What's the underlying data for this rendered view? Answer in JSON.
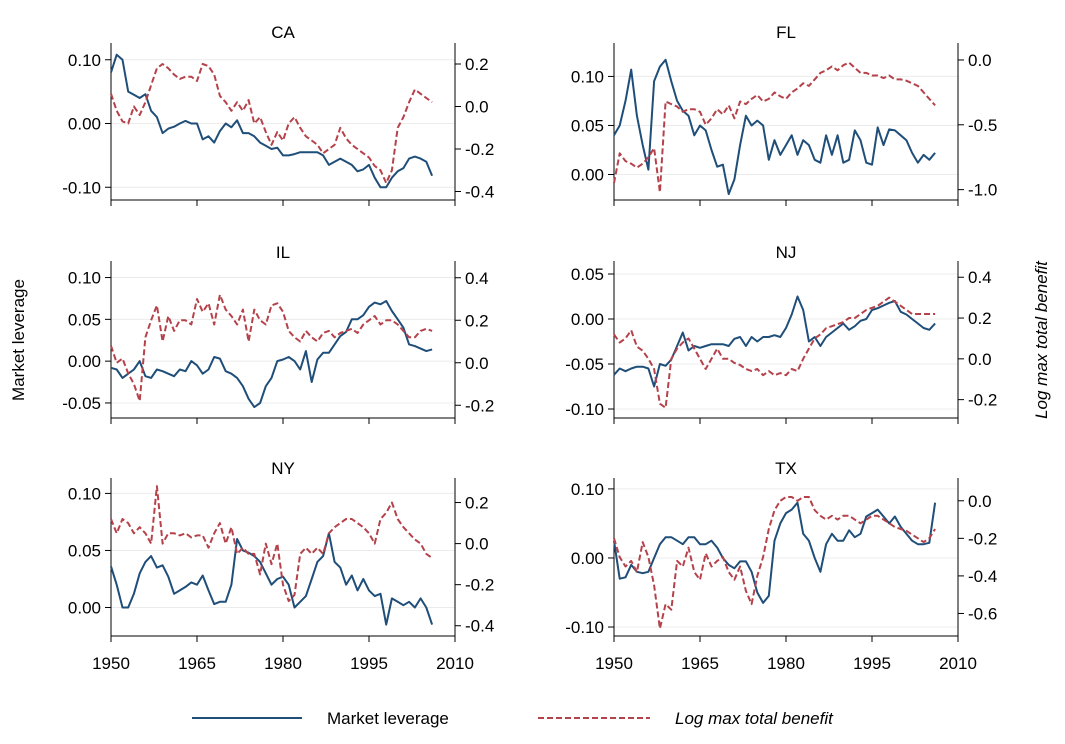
{
  "y_axis_left_label": "Market leverage",
  "y_axis_right_label": "Log max total benefit",
  "legend": [
    {
      "label": "Market leverage",
      "color": "#1f4e79",
      "style": "solid"
    },
    {
      "label": "Log max total benefit",
      "color": "#b5424a",
      "style": "dashed"
    }
  ],
  "x_ticks": [
    "1950",
    "1965",
    "1980",
    "1995",
    "2010"
  ],
  "chart_data": [
    {
      "type": "line",
      "title": "CA",
      "x_start": 1950,
      "x_step": 1,
      "xlim": [
        1950,
        2010
      ],
      "left_axis": {
        "ylim": [
          -0.12,
          0.12
        ],
        "ticks": [
          -0.1,
          0.0,
          0.1
        ],
        "tick_labels": [
          "-0.10",
          "0.00",
          "0.10"
        ]
      },
      "right_axis": {
        "ylim": [
          -0.44,
          0.28
        ],
        "ticks": [
          -0.4,
          -0.2,
          0.0,
          0.2
        ],
        "tick_labels": [
          "-0.4",
          "-0.2",
          "0.0",
          "0.2"
        ]
      },
      "series": [
        {
          "name": "Market leverage",
          "axis": "left",
          "values": [
            0.08,
            0.108,
            0.1,
            0.05,
            0.045,
            0.04,
            0.046,
            0.02,
            0.01,
            -0.015,
            -0.008,
            -0.005,
            0.0,
            0.004,
            0.0,
            0.0,
            -0.025,
            -0.02,
            -0.03,
            -0.012,
            0.0,
            -0.006,
            0.005,
            -0.015,
            -0.015,
            -0.02,
            -0.03,
            -0.035,
            -0.04,
            -0.038,
            -0.05,
            -0.05,
            -0.048,
            -0.045,
            -0.045,
            -0.045,
            -0.045,
            -0.05,
            -0.065,
            -0.06,
            -0.055,
            -0.06,
            -0.065,
            -0.075,
            -0.072,
            -0.065,
            -0.085,
            -0.1,
            -0.1,
            -0.085,
            -0.075,
            -0.07,
            -0.055,
            -0.052,
            -0.055,
            -0.06,
            -0.082
          ]
        },
        {
          "name": "Log max total benefit",
          "axis": "right",
          "values": [
            0.06,
            -0.02,
            -0.07,
            -0.08,
            0.0,
            -0.04,
            0.02,
            0.1,
            0.18,
            0.2,
            0.18,
            0.15,
            0.13,
            0.14,
            0.14,
            0.12,
            0.2,
            0.19,
            0.15,
            0.05,
            0.02,
            -0.02,
            0.02,
            -0.02,
            0.03,
            -0.08,
            -0.05,
            -0.12,
            -0.18,
            -0.12,
            -0.16,
            -0.08,
            -0.05,
            -0.1,
            -0.14,
            -0.16,
            -0.18,
            -0.22,
            -0.2,
            -0.18,
            -0.1,
            -0.15,
            -0.18,
            -0.2,
            -0.22,
            -0.24,
            -0.28,
            -0.3,
            -0.36,
            -0.3,
            -0.1,
            -0.05,
            0.02,
            0.08,
            0.06,
            0.04,
            0.02
          ]
        }
      ]
    },
    {
      "type": "line",
      "title": "FL",
      "x_start": 1950,
      "x_step": 1,
      "xlim": [
        1950,
        2010
      ],
      "left_axis": {
        "ylim": [
          -0.026,
          0.13
        ],
        "ticks": [
          0.0,
          0.05,
          0.1
        ],
        "tick_labels": [
          "0.00",
          "0.05",
          "0.10"
        ]
      },
      "right_axis": {
        "ylim": [
          -1.08,
          0.1
        ],
        "ticks": [
          -1.0,
          -0.5,
          0.0
        ],
        "tick_labels": [
          "-1.0",
          "-0.5",
          "0.0"
        ]
      },
      "series": [
        {
          "name": "Market leverage",
          "axis": "left",
          "values": [
            0.04,
            0.05,
            0.075,
            0.107,
            0.06,
            0.03,
            0.005,
            0.095,
            0.11,
            0.117,
            0.095,
            0.075,
            0.065,
            0.06,
            0.04,
            0.05,
            0.045,
            0.025,
            0.008,
            0.01,
            -0.02,
            -0.005,
            0.03,
            0.06,
            0.05,
            0.055,
            0.05,
            0.015,
            0.035,
            0.02,
            0.03,
            0.04,
            0.02,
            0.035,
            0.03,
            0.015,
            0.012,
            0.04,
            0.02,
            0.04,
            0.012,
            0.015,
            0.045,
            0.035,
            0.012,
            0.01,
            0.048,
            0.03,
            0.046,
            0.045,
            0.04,
            0.035,
            0.022,
            0.012,
            0.02,
            0.015,
            0.022
          ]
        },
        {
          "name": "Log max total benefit",
          "axis": "right",
          "values": [
            -0.95,
            -0.72,
            -0.78,
            -0.8,
            -0.83,
            -0.8,
            -0.75,
            -0.68,
            -1.02,
            -0.32,
            -0.34,
            -0.36,
            -0.4,
            -0.38,
            -0.38,
            -0.4,
            -0.5,
            -0.45,
            -0.38,
            -0.42,
            -0.35,
            -0.45,
            -0.32,
            -0.34,
            -0.3,
            -0.27,
            -0.32,
            -0.3,
            -0.25,
            -0.28,
            -0.3,
            -0.25,
            -0.22,
            -0.18,
            -0.2,
            -0.15,
            -0.1,
            -0.08,
            -0.05,
            -0.08,
            -0.04,
            -0.02,
            -0.06,
            -0.1,
            -0.1,
            -0.12,
            -0.12,
            -0.14,
            -0.12,
            -0.15,
            -0.15,
            -0.16,
            -0.18,
            -0.2,
            -0.25,
            -0.3,
            -0.35
          ]
        }
      ]
    },
    {
      "type": "line",
      "title": "IL",
      "x_start": 1950,
      "x_step": 1,
      "xlim": [
        1950,
        2010
      ],
      "left_axis": {
        "ylim": [
          -0.068,
          0.115
        ],
        "ticks": [
          -0.05,
          0.0,
          0.05,
          0.1
        ],
        "tick_labels": [
          "-0.05",
          "0.00",
          "0.05",
          "0.10"
        ]
      },
      "right_axis": {
        "ylim": [
          -0.26,
          0.46
        ],
        "ticks": [
          -0.2,
          0.0,
          0.2,
          0.4
        ],
        "tick_labels": [
          "-0.2",
          "0.0",
          "0.2",
          "0.4"
        ]
      },
      "series": [
        {
          "name": "Market leverage",
          "axis": "left",
          "values": [
            -0.008,
            -0.01,
            -0.02,
            -0.015,
            -0.01,
            0.0,
            -0.018,
            -0.02,
            -0.01,
            -0.012,
            -0.015,
            -0.018,
            -0.01,
            -0.012,
            0.0,
            -0.005,
            -0.015,
            -0.01,
            0.005,
            0.003,
            -0.012,
            -0.015,
            -0.02,
            -0.03,
            -0.045,
            -0.055,
            -0.05,
            -0.03,
            -0.02,
            0.0,
            0.002,
            0.005,
            0.0,
            -0.01,
            0.012,
            -0.025,
            0.002,
            0.01,
            0.01,
            0.02,
            0.03,
            0.035,
            0.05,
            0.05,
            0.055,
            0.065,
            0.07,
            0.068,
            0.072,
            0.06,
            0.05,
            0.04,
            0.02,
            0.018,
            0.015,
            0.012,
            0.014
          ]
        },
        {
          "name": "Log max total benefit",
          "axis": "right",
          "values": [
            0.08,
            0.0,
            0.02,
            -0.05,
            -0.1,
            -0.18,
            0.12,
            0.2,
            0.27,
            0.1,
            0.22,
            0.15,
            0.2,
            0.2,
            0.18,
            0.3,
            0.24,
            0.28,
            0.18,
            0.32,
            0.25,
            0.22,
            0.18,
            0.25,
            0.1,
            0.25,
            0.2,
            0.18,
            0.27,
            0.28,
            0.24,
            0.15,
            0.12,
            0.1,
            0.15,
            0.12,
            0.1,
            0.14,
            0.15,
            0.12,
            0.14,
            0.15,
            0.16,
            0.14,
            0.18,
            0.2,
            0.22,
            0.18,
            0.2,
            0.2,
            0.18,
            0.15,
            0.12,
            0.12,
            0.15,
            0.16,
            0.15
          ]
        }
      ]
    },
    {
      "type": "line",
      "title": "NJ",
      "x_start": 1950,
      "x_step": 1,
      "xlim": [
        1950,
        2010
      ],
      "left_axis": {
        "ylim": [
          -0.11,
          0.06
        ],
        "ticks": [
          -0.1,
          -0.05,
          0.0,
          0.05
        ],
        "tick_labels": [
          "-0.10",
          "-0.05",
          "0.00",
          "0.05"
        ]
      },
      "right_axis": {
        "ylim": [
          -0.29,
          0.46
        ],
        "ticks": [
          -0.2,
          0.0,
          0.2,
          0.4
        ],
        "tick_labels": [
          "-0.2",
          "0.0",
          "0.2",
          "0.4"
        ]
      },
      "series": [
        {
          "name": "Market leverage",
          "axis": "left",
          "values": [
            -0.062,
            -0.055,
            -0.058,
            -0.055,
            -0.053,
            -0.053,
            -0.055,
            -0.075,
            -0.05,
            -0.052,
            -0.045,
            -0.03,
            -0.015,
            -0.035,
            -0.03,
            -0.032,
            -0.03,
            -0.028,
            -0.028,
            -0.028,
            -0.03,
            -0.022,
            -0.02,
            -0.03,
            -0.02,
            -0.025,
            -0.02,
            -0.02,
            -0.018,
            -0.02,
            -0.01,
            0.005,
            0.025,
            0.01,
            -0.025,
            -0.02,
            -0.03,
            -0.02,
            -0.015,
            -0.01,
            -0.005,
            -0.012,
            -0.008,
            -0.002,
            0.0,
            0.01,
            0.012,
            0.015,
            0.018,
            0.02,
            0.008,
            0.005,
            0.0,
            -0.005,
            -0.01,
            -0.012,
            -0.005
          ]
        },
        {
          "name": "Log max total benefit",
          "axis": "right",
          "values": [
            0.12,
            0.08,
            0.1,
            0.14,
            0.06,
            0.04,
            0.0,
            -0.05,
            -0.22,
            -0.24,
            0.0,
            0.05,
            0.08,
            0.1,
            0.05,
            0.0,
            -0.05,
            0.0,
            0.05,
            0.0,
            0.0,
            -0.02,
            -0.03,
            -0.05,
            -0.06,
            -0.05,
            -0.08,
            -0.06,
            -0.08,
            -0.07,
            -0.08,
            -0.05,
            -0.06,
            0.0,
            0.05,
            0.1,
            0.12,
            0.15,
            0.16,
            0.17,
            0.18,
            0.2,
            0.2,
            0.22,
            0.24,
            0.25,
            0.26,
            0.28,
            0.3,
            0.28,
            0.26,
            0.24,
            0.22,
            0.22,
            0.22,
            0.22,
            0.22
          ]
        }
      ]
    },
    {
      "type": "line",
      "title": "NY",
      "x_start": 1950,
      "x_step": 1,
      "xlim": [
        1950,
        2010
      ],
      "left_axis": {
        "ylim": [
          -0.025,
          0.11
        ],
        "ticks": [
          0.0,
          0.05,
          0.1
        ],
        "tick_labels": [
          "0.00",
          "0.05",
          "0.10"
        ]
      },
      "right_axis": {
        "ylim": [
          -0.45,
          0.3
        ],
        "ticks": [
          -0.4,
          -0.2,
          0.0,
          0.2
        ],
        "tick_labels": [
          "-0.4",
          "-0.2",
          "0.0",
          "0.2"
        ]
      },
      "series": [
        {
          "name": "Market leverage",
          "axis": "left",
          "values": [
            0.036,
            0.02,
            0.0,
            0.0,
            0.012,
            0.03,
            0.04,
            0.045,
            0.035,
            0.037,
            0.027,
            0.012,
            0.015,
            0.018,
            0.022,
            0.02,
            0.028,
            0.015,
            0.003,
            0.005,
            0.005,
            0.02,
            0.06,
            0.05,
            0.048,
            0.045,
            0.04,
            0.03,
            0.02,
            0.025,
            0.027,
            0.02,
            0.0,
            0.005,
            0.01,
            0.025,
            0.04,
            0.045,
            0.065,
            0.04,
            0.035,
            0.02,
            0.028,
            0.015,
            0.025,
            0.015,
            0.01,
            0.012,
            -0.015,
            0.008,
            0.005,
            0.002,
            0.005,
            0.0,
            0.008,
            0.0,
            -0.015
          ]
        },
        {
          "name": "Log max total benefit",
          "axis": "right",
          "values": [
            0.12,
            0.05,
            0.12,
            0.1,
            0.05,
            0.08,
            0.05,
            0.0,
            0.28,
            0.0,
            0.05,
            0.05,
            0.04,
            0.05,
            0.03,
            0.04,
            0.04,
            -0.02,
            0.05,
            0.1,
            0.0,
            0.08,
            -0.05,
            -0.02,
            -0.05,
            -0.05,
            -0.15,
            0.0,
            -0.1,
            0.0,
            -0.2,
            -0.28,
            -0.25,
            -0.05,
            -0.02,
            -0.05,
            -0.02,
            -0.05,
            0.05,
            0.08,
            0.1,
            0.12,
            0.12,
            0.1,
            0.08,
            0.05,
            0.0,
            0.12,
            0.15,
            0.2,
            0.12,
            0.08,
            0.05,
            0.02,
            0.0,
            -0.05,
            -0.07
          ]
        }
      ]
    },
    {
      "type": "line",
      "title": "TX",
      "x_start": 1950,
      "x_step": 1,
      "xlim": [
        1950,
        2010
      ],
      "left_axis": {
        "ylim": [
          -0.113,
          0.11
        ],
        "ticks": [
          -0.1,
          0.0,
          0.1
        ],
        "tick_labels": [
          "-0.10",
          "0.00",
          "0.10"
        ]
      },
      "right_axis": {
        "ylim": [
          -0.72,
          0.1
        ],
        "ticks": [
          -0.6,
          -0.4,
          -0.2,
          0.0
        ],
        "tick_labels": [
          "-0.6",
          "-0.4",
          "-0.2",
          "0.0"
        ]
      },
      "series": [
        {
          "name": "Market leverage",
          "axis": "left",
          "values": [
            0.025,
            -0.03,
            -0.028,
            -0.01,
            -0.02,
            -0.022,
            -0.02,
            0.0,
            0.02,
            0.03,
            0.03,
            0.025,
            0.02,
            0.03,
            0.03,
            0.02,
            0.02,
            0.025,
            0.015,
            0.0,
            -0.01,
            -0.015,
            -0.005,
            -0.005,
            -0.02,
            -0.05,
            -0.065,
            -0.055,
            0.025,
            0.05,
            0.065,
            0.07,
            0.08,
            0.035,
            0.025,
            0.0,
            -0.02,
            0.02,
            0.035,
            0.025,
            0.025,
            0.04,
            0.03,
            0.035,
            0.06,
            0.065,
            0.07,
            0.06,
            0.05,
            0.06,
            0.045,
            0.035,
            0.025,
            0.02,
            0.02,
            0.022,
            0.08
          ]
        },
        {
          "name": "Log max total benefit",
          "axis": "right",
          "values": [
            -0.2,
            -0.3,
            -0.35,
            -0.32,
            -0.38,
            -0.22,
            -0.3,
            -0.45,
            -0.68,
            -0.55,
            -0.58,
            -0.32,
            -0.35,
            -0.25,
            -0.38,
            -0.42,
            -0.28,
            -0.35,
            -0.32,
            -0.3,
            -0.38,
            -0.42,
            -0.35,
            -0.48,
            -0.55,
            -0.4,
            -0.3,
            -0.15,
            -0.05,
            0.0,
            0.02,
            0.02,
            0.0,
            0.02,
            0.02,
            -0.05,
            -0.08,
            -0.1,
            -0.08,
            -0.1,
            -0.08,
            -0.08,
            -0.1,
            -0.12,
            -0.1,
            -0.08,
            -0.08,
            -0.1,
            -0.12,
            -0.14,
            -0.15,
            -0.16,
            -0.18,
            -0.2,
            -0.22,
            -0.2,
            -0.15
          ]
        }
      ]
    }
  ]
}
